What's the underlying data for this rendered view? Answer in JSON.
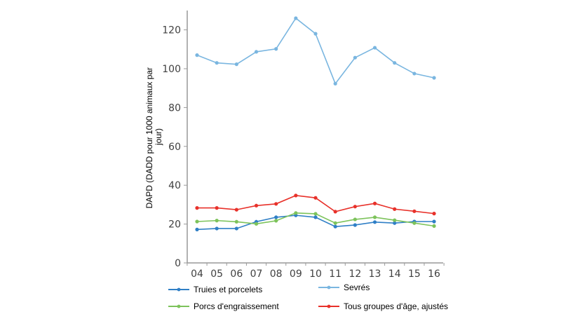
{
  "chart_data": {
    "type": "line",
    "title": "",
    "xlabel": "",
    "ylabel": "DAPD (DADD pour 1000 animaux par jour)",
    "ylabel_lines": [
      "DAPD (DADD pour 1000 animaux par",
      "jour)"
    ],
    "categories": [
      "04",
      "05",
      "06",
      "07",
      "08",
      "09",
      "10",
      "11",
      "12",
      "13",
      "14",
      "15",
      "16"
    ],
    "ylim": [
      0,
      130
    ],
    "yticks": [
      0,
      20,
      40,
      60,
      80,
      100,
      120
    ],
    "grid": false,
    "legend_placement": "bottom",
    "series": [
      {
        "name": "Truies et porcelets",
        "color": "#2f7fc6",
        "values": [
          17.2,
          17.7,
          17.7,
          21.2,
          23.5,
          24.5,
          23.5,
          18.7,
          19.5,
          21.0,
          20.5,
          21.3,
          21.3
        ]
      },
      {
        "name": "Sevrés",
        "color": "#7ab6e0",
        "values": [
          107,
          103,
          102.3,
          108.7,
          110.2,
          126,
          118,
          92.3,
          105.7,
          110.8,
          103,
          97.5,
          95.3
        ]
      },
      {
        "name": "Porcs d'engraissement",
        "color": "#7dc35b",
        "values": [
          21.3,
          21.8,
          21.2,
          20.1,
          21.7,
          25.7,
          25.3,
          20.5,
          22.4,
          23.5,
          22.0,
          20.5,
          19.0
        ]
      },
      {
        "name": "Tous groupes d'âge, ajustés",
        "color": "#e8312a",
        "values": [
          28.3,
          28.3,
          27.4,
          29.5,
          30.4,
          34.7,
          33.5,
          26.4,
          29.0,
          30.6,
          27.7,
          26.6,
          25.4
        ]
      }
    ]
  }
}
